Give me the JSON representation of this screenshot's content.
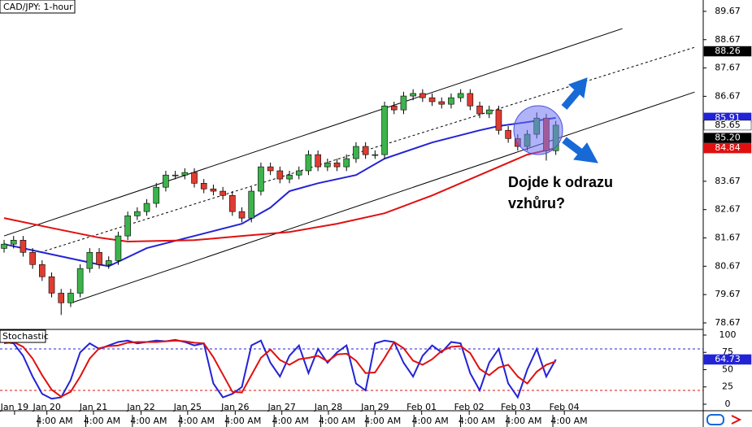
{
  "chart_data": [
    {
      "type": "candlestick",
      "title": "CAD/JPY: 1-hour",
      "xlim": [
        -0.43,
        73.5
      ],
      "ylim": [
        78.44,
        90.07
      ],
      "yticks": [
        78.67,
        79.67,
        80.67,
        81.67,
        82.67,
        83.67,
        86.67,
        87.67,
        88.67,
        89.67
      ],
      "xticks": [
        {
          "value": 1.1,
          "label": "Jan 19"
        },
        {
          "value": 4.5,
          "label": "Jan 20"
        },
        {
          "value": 9.4,
          "label": "Jan 21"
        },
        {
          "value": 14.4,
          "label": "Jan 22"
        },
        {
          "value": 19.3,
          "label": "Jan 25"
        },
        {
          "value": 24.3,
          "label": "Jan 26"
        },
        {
          "value": 29.2,
          "label": "Jan 27"
        },
        {
          "value": 34.1,
          "label": "Jan 28"
        },
        {
          "value": 39.0,
          "label": "Jan 29"
        },
        {
          "value": 43.9,
          "label": "Feb 01"
        },
        {
          "value": 48.9,
          "label": "Feb 02"
        },
        {
          "value": 53.8,
          "label": "Feb 03"
        },
        {
          "value": 58.9,
          "label": "Feb 04"
        }
      ],
      "xticks_minor": [
        {
          "value": 5.3,
          "label": "4:00 AM"
        },
        {
          "value": 10.3,
          "label": "4:00 AM"
        },
        {
          "value": 15.2,
          "label": "4:00 AM"
        },
        {
          "value": 20.2,
          "label": "4:00 AM"
        },
        {
          "value": 25.1,
          "label": "4:00 AM"
        },
        {
          "value": 30.1,
          "label": "4:00 AM"
        },
        {
          "value": 35.0,
          "label": "4:00 AM"
        },
        {
          "value": 39.8,
          "label": "4:00 AM"
        },
        {
          "value": 44.8,
          "label": "4:00 AM"
        },
        {
          "value": 49.7,
          "label": "4:00 AM"
        },
        {
          "value": 54.6,
          "label": "4:00 AM"
        },
        {
          "value": 59.4,
          "label": "4:00 AM"
        }
      ],
      "up_color": "#3cb44b",
      "down_color": "#e03c31",
      "x": [
        0,
        1,
        2,
        3,
        4,
        5,
        6,
        7,
        8,
        9,
        10,
        11,
        12,
        13,
        14,
        15,
        16,
        17,
        18,
        19,
        20,
        21,
        22,
        23,
        24,
        25,
        26,
        27,
        28,
        29,
        30,
        31,
        32,
        33,
        34,
        35,
        36,
        37,
        38,
        39,
        40,
        41,
        42,
        43,
        44,
        45,
        46,
        47,
        48,
        49,
        50,
        51,
        52,
        53,
        54,
        55,
        56,
        57,
        58
      ],
      "open": [
        81.3,
        81.45,
        81.59,
        81.16,
        80.73,
        80.3,
        79.72,
        79.38,
        79.72,
        80.59,
        81.16,
        80.73,
        80.87,
        81.74,
        82.45,
        82.6,
        82.89,
        83.46,
        83.89,
        83.89,
        83.98,
        83.6,
        83.4,
        83.32,
        83.17,
        82.6,
        82.37,
        83.32,
        84.18,
        84.04,
        83.75,
        83.89,
        84.04,
        84.61,
        84.18,
        84.32,
        84.18,
        84.47,
        84.9,
        84.61,
        84.61,
        86.33,
        86.19,
        86.68,
        86.77,
        86.62,
        86.48,
        86.39,
        86.62,
        86.77,
        86.33,
        86.05,
        86.19,
        85.47,
        85.18,
        84.9,
        85.33,
        85.9,
        84.75
      ],
      "high": [
        81.6,
        81.74,
        81.74,
        81.31,
        80.88,
        80.45,
        79.87,
        79.87,
        80.74,
        81.31,
        81.31,
        81.02,
        81.89,
        82.6,
        82.75,
        83.04,
        83.61,
        84.04,
        84.04,
        84.13,
        84.13,
        83.75,
        83.55,
        83.47,
        83.32,
        82.75,
        83.47,
        84.33,
        84.33,
        84.19,
        84.04,
        84.19,
        84.76,
        84.76,
        84.47,
        84.47,
        84.62,
        85.05,
        85.05,
        84.76,
        86.48,
        86.48,
        86.83,
        86.92,
        86.92,
        86.77,
        86.63,
        86.77,
        86.92,
        86.92,
        86.48,
        86.34,
        86.34,
        85.62,
        85.33,
        85.48,
        86.1,
        86.05,
        85.8
      ],
      "low": [
        81.15,
        81.3,
        81.01,
        80.58,
        80.15,
        79.57,
        78.95,
        79.23,
        79.57,
        80.44,
        80.58,
        80.58,
        80.72,
        81.59,
        82.3,
        82.45,
        82.74,
        83.31,
        83.74,
        83.74,
        83.45,
        83.25,
        83.17,
        83.02,
        82.45,
        82.22,
        82.22,
        83.17,
        83.89,
        83.6,
        83.6,
        83.74,
        83.89,
        84.03,
        84.03,
        84.03,
        84.03,
        84.32,
        84.46,
        84.46,
        84.46,
        86.04,
        86.04,
        86.53,
        86.47,
        86.33,
        86.24,
        86.24,
        86.47,
        86.18,
        85.9,
        85.9,
        85.32,
        85.03,
        84.75,
        84.75,
        85.18,
        84.4,
        84.6
      ],
      "close": [
        81.45,
        81.59,
        81.16,
        80.73,
        80.3,
        79.72,
        79.38,
        79.72,
        80.59,
        81.16,
        80.73,
        80.87,
        81.74,
        82.45,
        82.6,
        82.89,
        83.46,
        83.89,
        83.89,
        83.98,
        83.6,
        83.4,
        83.32,
        83.17,
        82.6,
        82.37,
        83.32,
        84.18,
        84.04,
        83.75,
        83.89,
        84.04,
        84.61,
        84.18,
        84.32,
        84.18,
        84.47,
        84.9,
        84.61,
        84.61,
        86.33,
        86.19,
        86.68,
        86.77,
        86.62,
        86.48,
        86.39,
        86.62,
        86.77,
        86.33,
        86.05,
        86.19,
        85.47,
        85.18,
        84.9,
        85.33,
        85.9,
        84.75,
        85.65
      ],
      "series": [
        {
          "color": "#2323d6",
          "x": [
            0,
            4,
            10,
            11,
            15,
            20,
            25,
            28,
            30,
            33,
            37,
            40,
            45,
            50,
            52,
            55,
            58
          ],
          "values": [
            81.45,
            81.16,
            80.73,
            80.67,
            81.31,
            81.74,
            82.17,
            82.74,
            83.32,
            83.6,
            83.89,
            84.47,
            85.04,
            85.47,
            85.62,
            85.76,
            85.91
          ]
        },
        {
          "color": "#e01010",
          "x": [
            0,
            5,
            10,
            13,
            20,
            25,
            30,
            35,
            40,
            45,
            50,
            55,
            58
          ],
          "values": [
            82.37,
            82.02,
            81.68,
            81.54,
            81.59,
            81.74,
            81.88,
            82.17,
            82.54,
            83.17,
            83.89,
            84.61,
            84.84
          ]
        }
      ],
      "channels": [
        {
          "x": [
            0,
            65
          ],
          "values": [
            81.74,
            89.06
          ],
          "dashed": false
        },
        {
          "x": [
            7.1,
            72.6
          ],
          "values": [
            79.38,
            86.82
          ],
          "dashed": false
        },
        {
          "x": [
            3.8,
            72.6
          ],
          "values": [
            81.16,
            88.4
          ],
          "dashed": true
        }
      ],
      "price_badges": [
        {
          "value": 88.26,
          "color": "#000000"
        },
        {
          "value": 85.91,
          "color": "#2323d6"
        },
        {
          "value": 85.65,
          "color": "#ffffff"
        },
        {
          "value": 85.2,
          "label": "85.20",
          "color": "#000000"
        },
        {
          "value": 84.84,
          "color": "#e01010"
        }
      ],
      "annotation": [
        "Dojde k odrazu",
        "vzhůru?"
      ]
    },
    {
      "type": "line",
      "title": "Stochastic",
      "xlim": [
        -0.43,
        73.5
      ],
      "ylim": [
        -9.4,
        108.2
      ],
      "yticks": [
        0,
        25,
        50,
        75,
        100
      ],
      "x": [
        0,
        1,
        2,
        3,
        4,
        5,
        6,
        7,
        8,
        9,
        10,
        11,
        12,
        13,
        14,
        15,
        16,
        17,
        18,
        19,
        20,
        21,
        22,
        23,
        24,
        25,
        26,
        27,
        28,
        29,
        30,
        31,
        32,
        33,
        34,
        35,
        36,
        37,
        38,
        39,
        40,
        41,
        42,
        43,
        44,
        45,
        46,
        47,
        48,
        49,
        50,
        51,
        52,
        53,
        54,
        55,
        56,
        57,
        58
      ],
      "series": [
        {
          "color": "#2323d6",
          "values": [
            90,
            88,
            70,
            40,
            15,
            8,
            10,
            35,
            75,
            88,
            80,
            85,
            90,
            92,
            88,
            90,
            92,
            91,
            93,
            90,
            85,
            88,
            30,
            10,
            15,
            25,
            85,
            92,
            60,
            40,
            70,
            85,
            45,
            80,
            60,
            75,
            85,
            30,
            20,
            88,
            92,
            90,
            60,
            40,
            70,
            85,
            75,
            90,
            88,
            45,
            20,
            60,
            80,
            30,
            10,
            50,
            80,
            40,
            64.73
          ]
        },
        {
          "color": "#e01010",
          "values": [
            88,
            90,
            83,
            66,
            42,
            21,
            11,
            18,
            40,
            66,
            81,
            84,
            85,
            89,
            90,
            90,
            90,
            91,
            92,
            91,
            89,
            88,
            68,
            43,
            18,
            17,
            42,
            67,
            79,
            64,
            57,
            65,
            67,
            70,
            62,
            72,
            73,
            63,
            45,
            46,
            67,
            90,
            81,
            63,
            57,
            65,
            77,
            83,
            84,
            74,
            51,
            42,
            53,
            57,
            40,
            30,
            47,
            57,
            62
          ]
        }
      ],
      "levels": [
        {
          "value": 80,
          "color": "#2323d6"
        },
        {
          "value": 20,
          "color": "#e01010"
        }
      ],
      "price_badges": [
        {
          "value": 64.73,
          "color": "#2323d6"
        }
      ]
    }
  ]
}
